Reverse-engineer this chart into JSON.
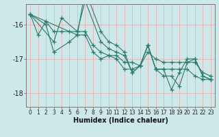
{
  "xlabel": "Humidex (Indice chaleur)",
  "background_color": "#cce8e8",
  "grid_color": "#e8b0b0",
  "line_color": "#2a7a6a",
  "xlim": [
    -0.5,
    23.5
  ],
  "ylim": [
    -18.4,
    -15.4
  ],
  "yticks": [
    -18,
    -17,
    -16
  ],
  "xticks": [
    0,
    1,
    2,
    3,
    4,
    5,
    6,
    7,
    8,
    9,
    10,
    11,
    12,
    13,
    14,
    15,
    16,
    17,
    18,
    19,
    20,
    21,
    22,
    23
  ],
  "series": [
    {
      "x": [
        0,
        1,
        2,
        3,
        4,
        5,
        6,
        7,
        8,
        9,
        10,
        11,
        12,
        13,
        14,
        15,
        16,
        17,
        18,
        19,
        20,
        21,
        22,
        23
      ],
      "y": [
        -15.7,
        -16.3,
        -15.9,
        -16.2,
        -16.2,
        -16.2,
        -16.2,
        -16.2,
        -16.6,
        -16.8,
        -16.9,
        -16.9,
        -17.1,
        -17.1,
        -17.2,
        -16.8,
        -17.0,
        -17.1,
        -17.1,
        -17.1,
        -17.1,
        -17.1,
        -17.4,
        -17.5
      ]
    },
    {
      "x": [
        0,
        3,
        4,
        6,
        7,
        9,
        10,
        11,
        12,
        13,
        14,
        15,
        16,
        17,
        18,
        19,
        20,
        21,
        22,
        23
      ],
      "y": [
        -15.7,
        -16.5,
        -15.8,
        -16.2,
        -15.3,
        -16.5,
        -16.7,
        -16.8,
        -16.9,
        -17.4,
        -17.2,
        -16.6,
        -17.3,
        -17.3,
        -17.3,
        -17.3,
        -17.3,
        -17.5,
        -17.6,
        -17.6
      ]
    },
    {
      "x": [
        0,
        2,
        3,
        5,
        6,
        7,
        8,
        9,
        10,
        11,
        12,
        13,
        14,
        15,
        16,
        17,
        18,
        19,
        20,
        21,
        22,
        23
      ],
      "y": [
        -15.7,
        -16.0,
        -16.8,
        -16.5,
        -16.3,
        -16.3,
        -16.8,
        -17.0,
        -16.9,
        -17.0,
        -17.3,
        -17.3,
        -17.2,
        -16.6,
        -17.3,
        -17.3,
        -17.9,
        -17.4,
        -17.0,
        -17.0,
        -17.5,
        -17.6
      ]
    },
    {
      "x": [
        0,
        6,
        7,
        9,
        10,
        11,
        12,
        13,
        14,
        15,
        16,
        17,
        18,
        19,
        20,
        21,
        22,
        23
      ],
      "y": [
        -15.7,
        -16.3,
        -15.0,
        -16.2,
        -16.5,
        -16.6,
        -16.8,
        -17.4,
        -17.2,
        -16.6,
        -17.3,
        -17.5,
        -17.5,
        -17.8,
        -17.1,
        -17.0,
        -17.5,
        -17.6
      ]
    }
  ]
}
